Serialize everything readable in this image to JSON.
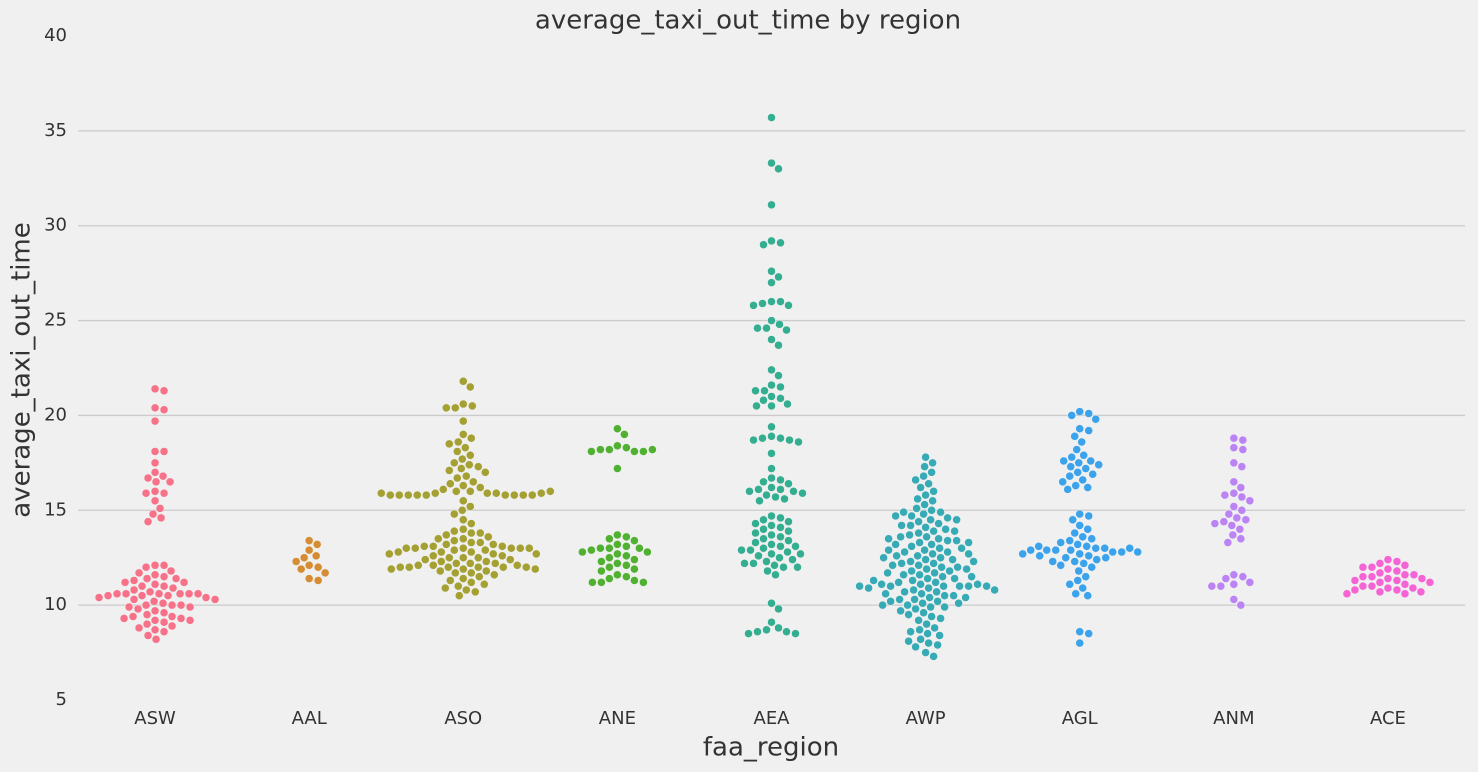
{
  "chart_data": {
    "type": "swarm",
    "title": "average_taxi_out_time by region",
    "x_label": "faa_region",
    "y_label": "average_taxi_out_time",
    "categories": [
      "ASW",
      "AAL",
      "ASO",
      "ANE",
      "AEA",
      "AWP",
      "AGL",
      "ANM",
      "ACE"
    ],
    "colors": [
      "#f77189",
      "#d58c32",
      "#a4a031",
      "#50b131",
      "#34ae91",
      "#37abb5",
      "#3ba3ec",
      "#bb83f4",
      "#f564d4"
    ],
    "values": [
      [
        21.4,
        21.3,
        20.4,
        20.3,
        19.7,
        18.1,
        18.1,
        17.5,
        17.0,
        16.8,
        16.7,
        16.5,
        16.5,
        16.0,
        15.9,
        15.9,
        15.5,
        15.1,
        14.8,
        14.6,
        14.4,
        12.1,
        12.1,
        12.0,
        11.8,
        11.7,
        11.6,
        11.5,
        11.4,
        11.4,
        11.3,
        11.2,
        11.2,
        11.1,
        11.0,
        11.0,
        10.9,
        10.8,
        10.7,
        10.6,
        10.6,
        10.6,
        10.6,
        10.6,
        10.6,
        10.5,
        10.5,
        10.5,
        10.4,
        10.4,
        10.3,
        10.3,
        10.2,
        10.1,
        10.0,
        10.0,
        10.0,
        9.9,
        9.9,
        9.8,
        9.7,
        9.6,
        9.5,
        9.4,
        9.4,
        9.3,
        9.3,
        9.2,
        9.2,
        9.1,
        9.0,
        8.9,
        8.8,
        8.7,
        8.6,
        8.4,
        8.2
      ],
      [
        13.4,
        13.2,
        12.9,
        12.6,
        12.5,
        12.3,
        12.1,
        12.0,
        11.9,
        11.7,
        11.4,
        11.3
      ],
      [
        21.8,
        21.5,
        20.6,
        20.5,
        20.4,
        20.4,
        19.7,
        19.0,
        18.8,
        18.6,
        18.5,
        18.3,
        18.1,
        17.9,
        17.7,
        17.5,
        17.4,
        17.3,
        17.2,
        17.1,
        17.0,
        16.8,
        16.7,
        16.5,
        16.4,
        16.3,
        16.2,
        16.1,
        16.0,
        16.0,
        15.9,
        15.9,
        15.9,
        15.8,
        15.8,
        15.8,
        15.8,
        15.8,
        15.8,
        15.8,
        15.8,
        15.8,
        15.9,
        15.9,
        16.0,
        15.5,
        15.2,
        15.0,
        14.8,
        14.5,
        14.3,
        14.0,
        13.9,
        13.8,
        13.8,
        13.7,
        13.6,
        13.5,
        13.5,
        13.4,
        13.3,
        13.3,
        13.2,
        13.2,
        13.1,
        13.1,
        13.1,
        13.0,
        13.0,
        13.0,
        13.0,
        13.0,
        13.0,
        12.9,
        12.9,
        12.8,
        12.8,
        12.8,
        12.7,
        12.7,
        12.7,
        12.6,
        12.6,
        12.5,
        12.5,
        12.5,
        12.4,
        12.4,
        12.3,
        12.3,
        12.2,
        12.2,
        12.2,
        12.1,
        12.1,
        12.1,
        12.0,
        12.0,
        12.0,
        12.0,
        12.0,
        12.0,
        11.9,
        11.9,
        11.9,
        11.8,
        11.8,
        11.7,
        11.7,
        11.6,
        11.5,
        11.4,
        11.3,
        11.2,
        11.1,
        11.0,
        10.9,
        10.8,
        10.7,
        10.5
      ],
      [
        19.3,
        19.0,
        18.4,
        18.3,
        18.2,
        18.2,
        18.1,
        18.1,
        18.1,
        18.2,
        17.2,
        13.7,
        13.6,
        13.5,
        13.4,
        13.2,
        13.1,
        13.0,
        13.0,
        13.0,
        12.9,
        12.8,
        12.8,
        12.7,
        12.6,
        12.5,
        12.4,
        12.3,
        12.2,
        12.1,
        12.0,
        11.9,
        11.8,
        11.6,
        11.5,
        11.4,
        11.3,
        11.2,
        11.2,
        11.2
      ],
      [
        35.7,
        33.3,
        33.0,
        31.1,
        29.2,
        29.1,
        29.0,
        27.6,
        27.3,
        27.0,
        26.0,
        26.0,
        25.9,
        25.8,
        25.8,
        25.0,
        24.8,
        24.6,
        24.6,
        24.5,
        24.0,
        23.7,
        22.4,
        22.1,
        21.6,
        21.5,
        21.3,
        21.3,
        21.0,
        20.9,
        20.8,
        20.6,
        20.5,
        20.5,
        19.4,
        18.9,
        18.8,
        18.8,
        18.7,
        18.7,
        18.6,
        18.0,
        17.2,
        16.7,
        16.6,
        16.5,
        16.4,
        16.2,
        16.1,
        16.1,
        16.0,
        16.0,
        15.9,
        15.8,
        15.7,
        15.6,
        15.5,
        14.7,
        14.6,
        14.5,
        14.4,
        14.3,
        14.2,
        14.1,
        14.0,
        13.9,
        13.8,
        13.7,
        13.6,
        13.5,
        13.4,
        13.3,
        13.2,
        13.1,
        13.1,
        13.0,
        12.9,
        12.9,
        12.8,
        12.7,
        12.7,
        12.6,
        12.5,
        12.4,
        12.3,
        12.2,
        12.2,
        12.1,
        12.0,
        12.0,
        11.8,
        11.6,
        10.1,
        9.8,
        9.1,
        8.8,
        8.7,
        8.6,
        8.6,
        8.5,
        8.5
      ],
      [
        17.8,
        17.5,
        17.3,
        17.0,
        16.8,
        16.6,
        16.4,
        16.2,
        16.0,
        15.8,
        15.6,
        15.5,
        15.3,
        15.1,
        15.0,
        14.9,
        14.8,
        14.7,
        14.6,
        14.5,
        14.4,
        14.3,
        14.2,
        14.1,
        14.0,
        13.9,
        13.8,
        13.7,
        13.6,
        13.5,
        13.4,
        13.3,
        13.2,
        13.1,
        13.0,
        12.9,
        12.8,
        12.7,
        12.6,
        12.5,
        12.4,
        12.3,
        12.2,
        12.1,
        12.0,
        11.9,
        11.8,
        11.7,
        11.6,
        11.5,
        11.4,
        11.3,
        11.2,
        11.1,
        11.0,
        14.9,
        14.7,
        14.5,
        14.2,
        13.9,
        13.6,
        13.4,
        13.2,
        13.0,
        12.8,
        12.6,
        12.4,
        12.2,
        12.0,
        11.8,
        11.6,
        11.4,
        11.2,
        11.0,
        11.0,
        11.0,
        11.1,
        11.1,
        10.9,
        10.8,
        10.7,
        10.6,
        10.5,
        10.4,
        10.3,
        10.2,
        10.1,
        10.0,
        9.9,
        9.8,
        9.6,
        9.4,
        9.2,
        9.0,
        8.7,
        8.5,
        8.2,
        8.0,
        7.8,
        7.5,
        7.3,
        13.5,
        13.3,
        12.9,
        12.7,
        12.5,
        12.3,
        12.1,
        11.9,
        11.7,
        11.5,
        11.3,
        10.9,
        10.7,
        10.5,
        10.3,
        10.1,
        9.9,
        9.7,
        9.5,
        9.3,
        11.0,
        11.0,
        10.8,
        10.6,
        10.4,
        10.2,
        10.0,
        8.8,
        8.6,
        8.4,
        8.1,
        7.9
      ],
      [
        20.2,
        20.1,
        20.0,
        19.8,
        19.3,
        19.2,
        18.9,
        18.6,
        18.2,
        17.9,
        17.8,
        17.6,
        17.6,
        17.5,
        17.4,
        17.3,
        17.2,
        17.0,
        16.9,
        16.8,
        16.6,
        16.5,
        16.3,
        16.2,
        16.1,
        14.8,
        14.7,
        14.5,
        14.2,
        14.0,
        13.8,
        13.6,
        13.5,
        13.4,
        13.3,
        13.2,
        13.1,
        13.0,
        13.0,
        12.9,
        12.9,
        12.9,
        12.8,
        12.8,
        12.7,
        12.6,
        12.5,
        12.4,
        12.3,
        12.2,
        12.1,
        12.0,
        11.8,
        11.5,
        11.3,
        11.1,
        10.9,
        10.6,
        10.5,
        8.6,
        8.5,
        8.0,
        13.1,
        13.0,
        12.9,
        12.8,
        12.7,
        12.6,
        12.5,
        12.3
      ],
      [
        18.8,
        18.7,
        18.3,
        18.2,
        17.5,
        17.3,
        16.5,
        16.2,
        15.9,
        15.8,
        15.7,
        15.5,
        15.2,
        15.0,
        14.8,
        14.6,
        14.5,
        14.4,
        14.3,
        14.2,
        14.0,
        13.7,
        13.5,
        13.3,
        11.6,
        11.5,
        11.4,
        11.2,
        11.1,
        11.0,
        11.0,
        10.3,
        10.0
      ],
      [
        12.4,
        12.3,
        12.2,
        12.1,
        12.0,
        12.0,
        11.9,
        11.8,
        11.7,
        11.6,
        11.6,
        11.5,
        11.5,
        11.4,
        11.4,
        11.3,
        11.3,
        11.2,
        11.2,
        11.1,
        11.0,
        11.0,
        10.9,
        10.9,
        10.8,
        10.8,
        10.7,
        10.7,
        10.6,
        10.6
      ]
    ],
    "ylim": [
      5,
      40
    ],
    "yticks": [
      5,
      10,
      15,
      20,
      25,
      30,
      35,
      40
    ],
    "grid": true
  }
}
